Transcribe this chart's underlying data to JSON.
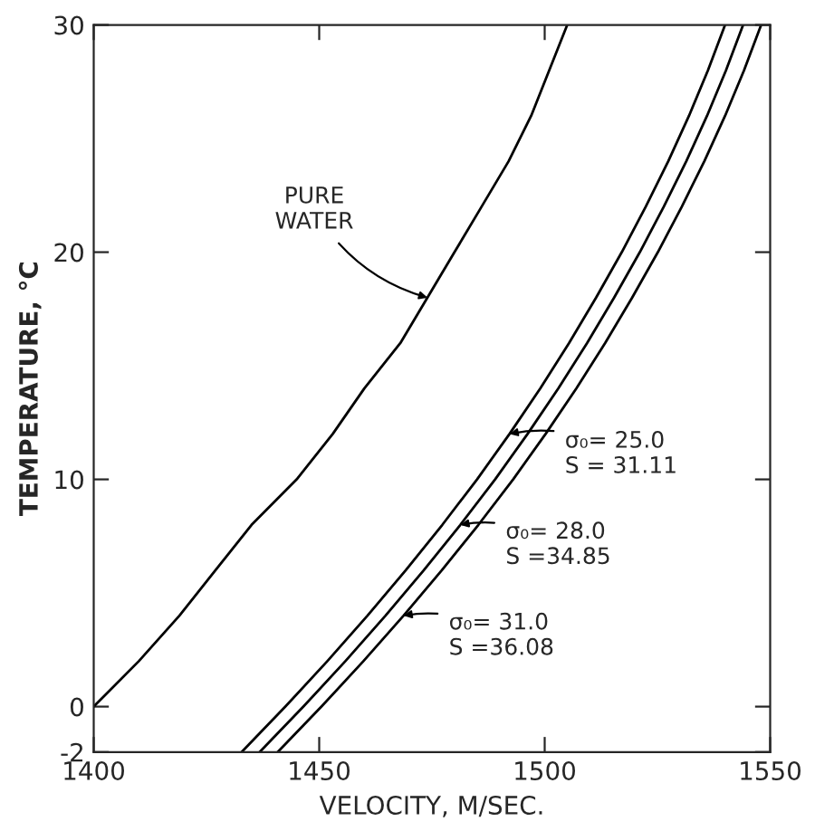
{
  "chart_data": {
    "type": "line",
    "xlabel": "VELOCITY, M/SEC.",
    "ylabel": "TEMPERATURE, °C",
    "xlim": [
      1400,
      1550
    ],
    "xticks": [
      1400,
      1450,
      1500,
      1550
    ],
    "ylim": [
      -2,
      30
    ],
    "yticks": [
      -2,
      0,
      10,
      20,
      30
    ],
    "grid": false,
    "legend": false,
    "series": [
      {
        "color": "#000000",
        "x": [
          1400,
          1410,
          1419,
          1427,
          1435,
          1445,
          1453,
          1460,
          1468,
          1474,
          1480,
          1486,
          1492,
          1497,
          1501,
          1505
        ],
        "values": [
          0,
          2,
          4,
          6,
          8,
          10,
          12,
          14,
          16,
          18,
          20,
          22,
          24,
          26,
          28,
          30
        ]
      },
      {
        "color": "#000000",
        "x": [
          1432.8,
          1442.5,
          1451.8,
          1460.7,
          1469.2,
          1477.3,
          1485,
          1492.2,
          1499,
          1505.4,
          1511.4,
          1517.1,
          1522.4,
          1527.4,
          1532,
          1536.2,
          1540
        ],
        "values": [
          -2,
          0,
          2,
          4,
          6,
          8,
          10,
          12,
          14,
          16,
          18,
          20,
          22,
          24,
          26,
          28,
          30
        ]
      },
      {
        "color": "#000000",
        "x": [
          1436.8,
          1446.5,
          1455.8,
          1464.7,
          1473.2,
          1481.3,
          1489,
          1496.2,
          1503,
          1509.4,
          1515.4,
          1521.1,
          1526.4,
          1531.4,
          1536,
          1540.2,
          1544
        ],
        "values": [
          -2,
          0,
          2,
          4,
          6,
          8,
          10,
          12,
          14,
          16,
          18,
          20,
          22,
          24,
          26,
          28,
          30
        ]
      },
      {
        "color": "#000000",
        "x": [
          1440.8,
          1450.5,
          1459.8,
          1468.7,
          1477.2,
          1485.3,
          1493,
          1500.2,
          1507,
          1513.4,
          1519.4,
          1525.1,
          1530.4,
          1535.4,
          1540,
          1544.2,
          1548
        ],
        "values": [
          -2,
          0,
          2,
          4,
          6,
          8,
          10,
          12,
          14,
          16,
          18,
          20,
          22,
          24,
          26,
          28,
          30
        ]
      }
    ],
    "annotations": [
      {
        "text": "PURE\nWATER",
        "x": 1474,
        "y": 18
      },
      {
        "text": "σ₀= 25.0\nS = 31.11",
        "x": 1492.2,
        "y": 12
      },
      {
        "text": "σ₀= 28.0\nS =34.85",
        "x": 1481.3,
        "y": 8
      },
      {
        "text": "σ₀= 31.0\nS =36.08",
        "x": 1468.7,
        "y": 4
      }
    ]
  }
}
